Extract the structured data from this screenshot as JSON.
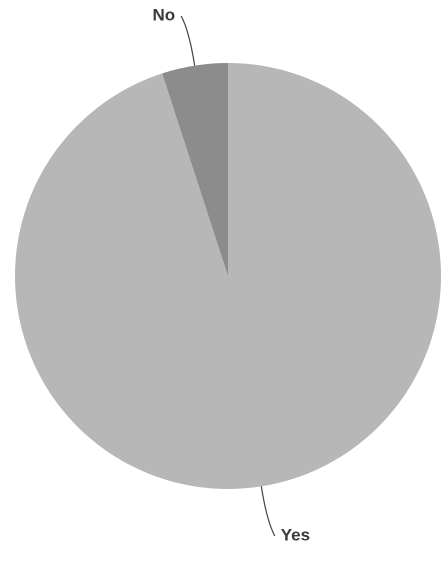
{
  "chart_data": {
    "type": "pie",
    "categories": [
      "Yes",
      "No"
    ],
    "values": [
      95,
      5
    ],
    "colors": [
      "#b7b7b7",
      "#8c8c8c"
    ]
  }
}
